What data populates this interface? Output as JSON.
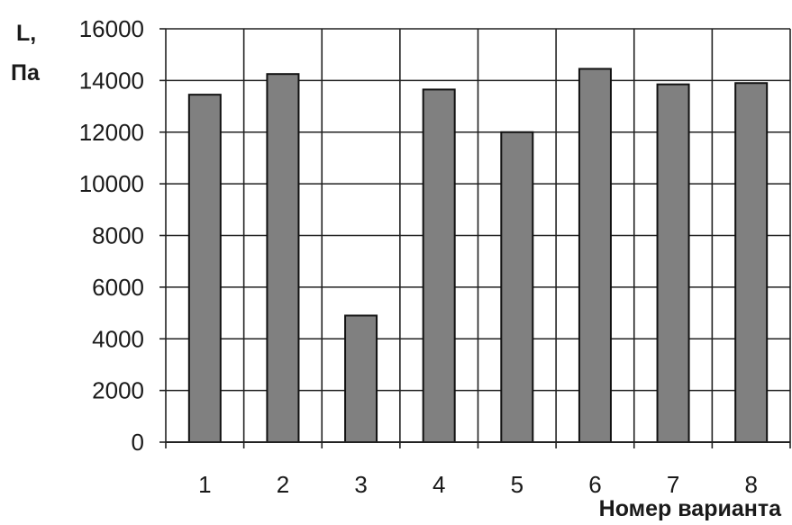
{
  "chart_data": {
    "type": "bar",
    "categories": [
      "1",
      "2",
      "3",
      "4",
      "5",
      "6",
      "7",
      "8"
    ],
    "values": [
      13450,
      14250,
      4900,
      13650,
      12000,
      14450,
      13850,
      13900
    ],
    "ylabel_line1": "L,",
    "ylabel_line2": "Па",
    "xlabel": "Номер варианта",
    "ylim": [
      0,
      16000
    ],
    "yticks": [
      "0",
      "2000",
      "4000",
      "6000",
      "8000",
      "10000",
      "12000",
      "14000",
      "16000"
    ],
    "grid": true,
    "legend": "none",
    "colors": {
      "bar_fill": "#808080",
      "bar_stroke": "#111111",
      "grid": "#222222",
      "axis": "#222222"
    }
  }
}
